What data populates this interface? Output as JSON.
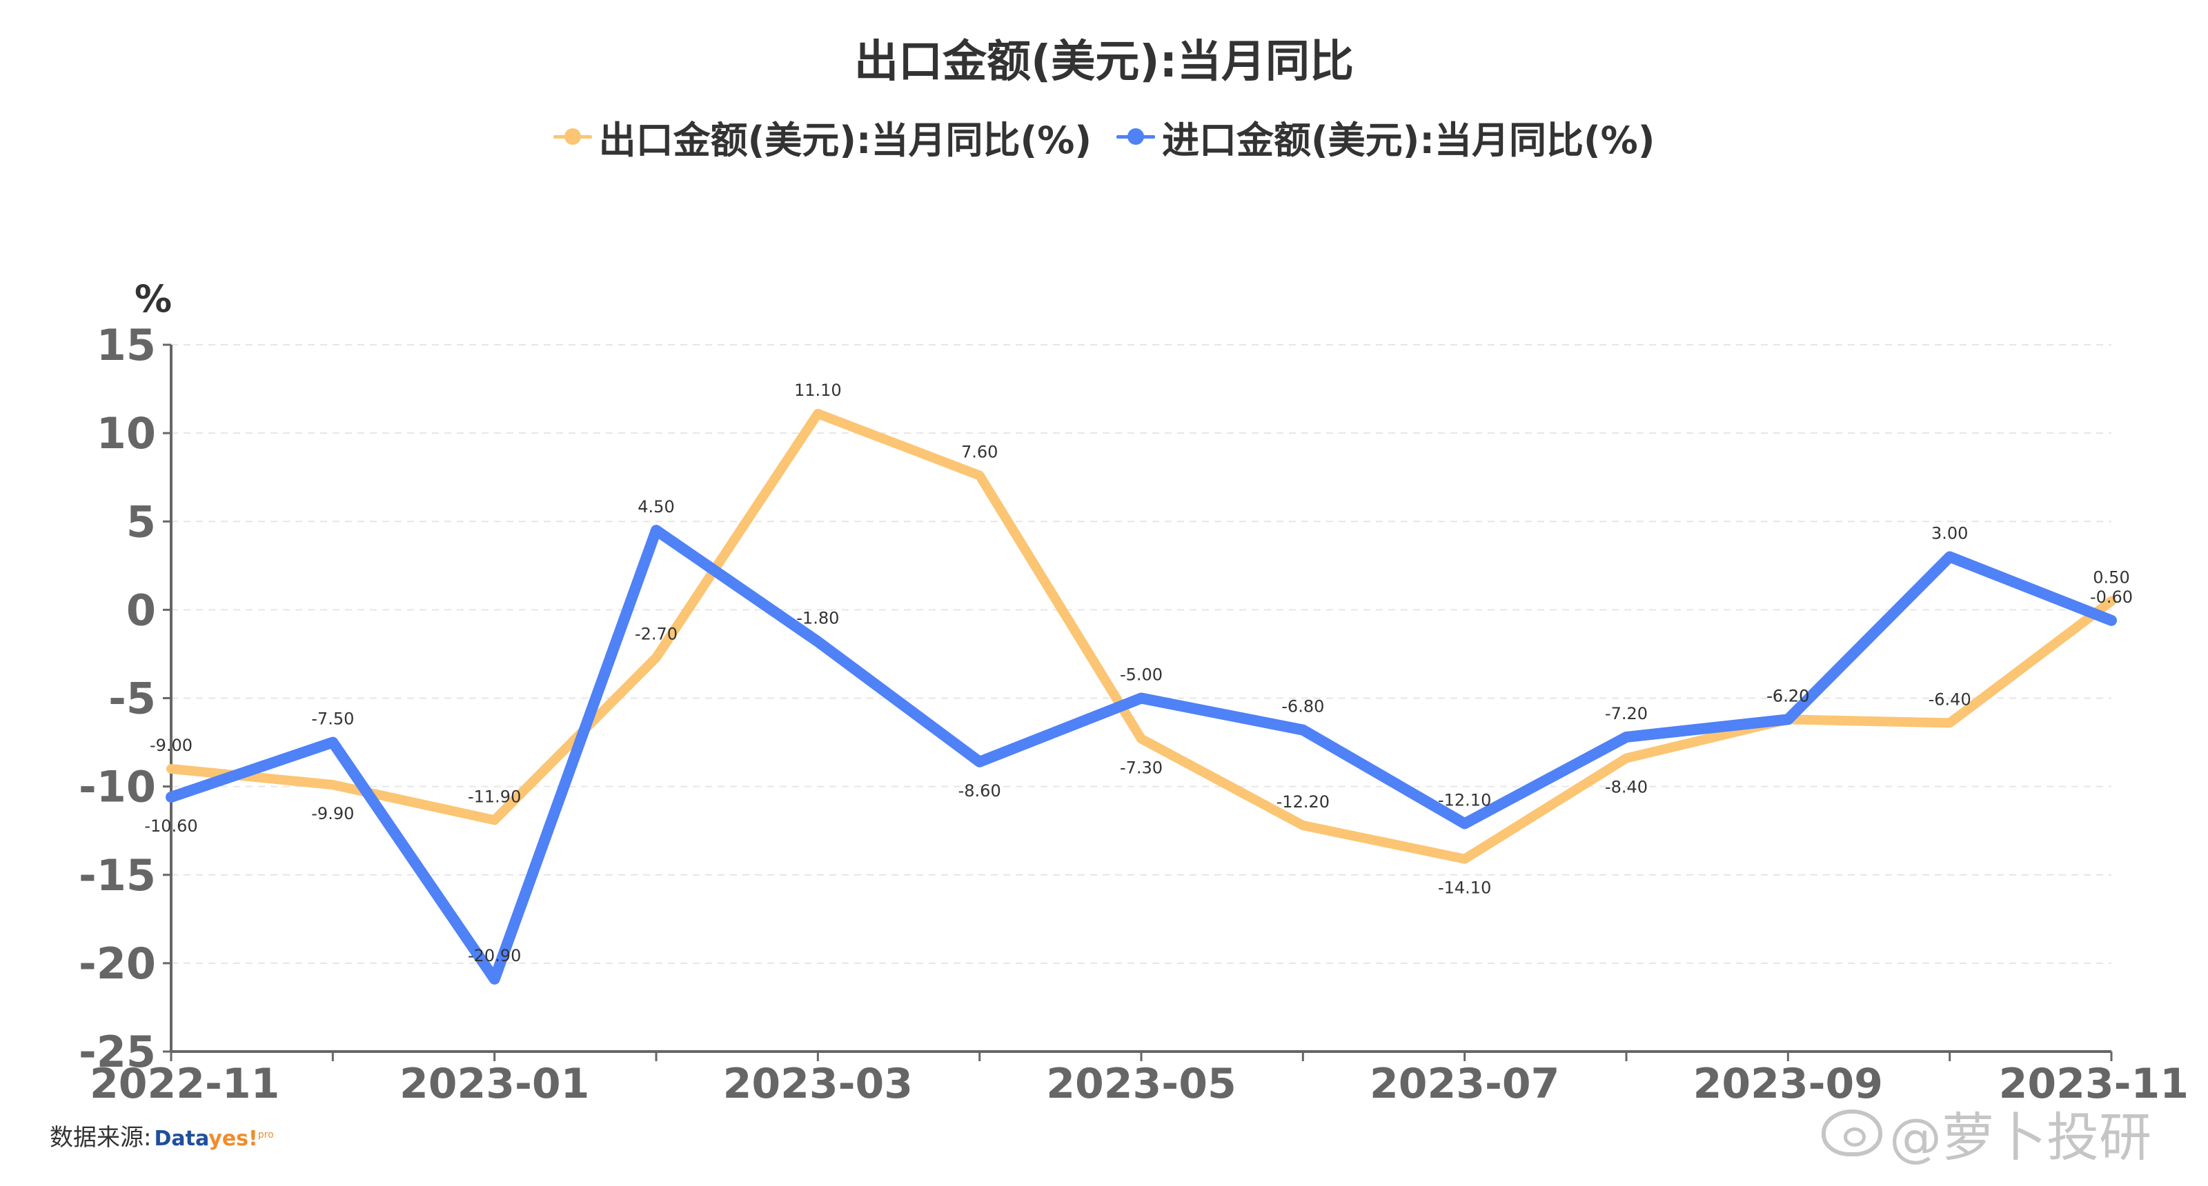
{
  "title": "出口金额(美元):当月同比",
  "legend": [
    {
      "label": "出口金额(美元):当月同比(%)",
      "color": "#fcc573"
    },
    {
      "label": "进口金额(美元):当月同比(%)",
      "color": "#4f81f7"
    }
  ],
  "source": {
    "label": "数据来源:",
    "brand_main": "Data",
    "brand_accent": "yes!",
    "brand_sup": "pro"
  },
  "watermark": {
    "text": "@萝卜投研"
  },
  "chart_data": {
    "type": "line",
    "x": [
      "2022-11",
      "2022-12",
      "2023-01",
      "2023-02",
      "2023-03",
      "2023-04",
      "2023-05",
      "2023-06",
      "2023-07",
      "2023-08",
      "2023-09",
      "2023-10",
      "2023-11"
    ],
    "x_tick_labels": [
      "2022-11",
      "2023-01",
      "2023-03",
      "2023-05",
      "2023-07",
      "2023-09",
      "2023-11"
    ],
    "ylabel": "%",
    "ylim": [
      -25,
      15
    ],
    "y_ticks": [
      15,
      10,
      5,
      0,
      -5,
      -10,
      -15,
      -20,
      -25
    ],
    "grid": "horizontal-dashed",
    "legend_position": "top-center",
    "series": [
      {
        "name": "出口金额(美元):当月同比(%)",
        "color": "#fcc573",
        "values": [
          -9.0,
          -9.9,
          -11.9,
          -2.7,
          11.1,
          7.6,
          -7.3,
          -12.2,
          -14.1,
          -8.4,
          -6.2,
          -6.4,
          0.5
        ]
      },
      {
        "name": "进口金额(美元):当月同比(%)",
        "color": "#4f81f7",
        "values": [
          -10.6,
          -7.5,
          -20.9,
          4.5,
          -1.8,
          -8.6,
          -5.0,
          -6.8,
          -12.1,
          -7.2,
          -6.2,
          3.0,
          -0.6
        ]
      }
    ]
  }
}
